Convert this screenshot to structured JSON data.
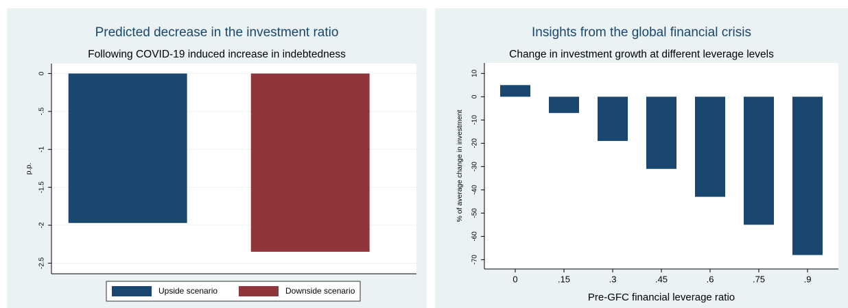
{
  "chart_data": [
    {
      "type": "bar",
      "title": "Predicted decrease in the investment ratio",
      "subtitle": "Following COVID-19 induced increase in indebtedness",
      "y_label": "p.p.",
      "series": [
        {
          "name": "Upside scenario",
          "color": "#1a476f",
          "values": [
            -1.97
          ]
        },
        {
          "name": "Downside scenario",
          "color": "#90353b",
          "values": [
            -2.35
          ]
        }
      ],
      "ylim": [
        -2.64,
        0.13
      ],
      "yticks": [
        0,
        {
          "value": -0.5,
          "label": "-.5"
        },
        -1,
        {
          "value": -1.5,
          "label": "-1.5"
        },
        -2,
        {
          "value": -2.5,
          "label": "-2.5"
        }
      ],
      "grid": true,
      "legend": "bottom"
    },
    {
      "type": "bar",
      "title": "Insights from the global financial crisis",
      "subtitle": "Change in investment growth at different leverage levels",
      "y_label": "% of average change in investment",
      "x_label": "Pre-GFC financial leverage ratio",
      "categories": [
        "0",
        ".15",
        ".3",
        ".45",
        ".6",
        ".75",
        ".9"
      ],
      "values": [
        5,
        -7,
        -19,
        -31,
        -43,
        -55,
        -68
      ],
      "color": "#1a476f",
      "ylim": [
        -74,
        14.5
      ],
      "yticks": [
        10,
        0,
        -10,
        -20,
        -30,
        -40,
        -50,
        -60,
        -70
      ],
      "grid": false
    }
  ]
}
